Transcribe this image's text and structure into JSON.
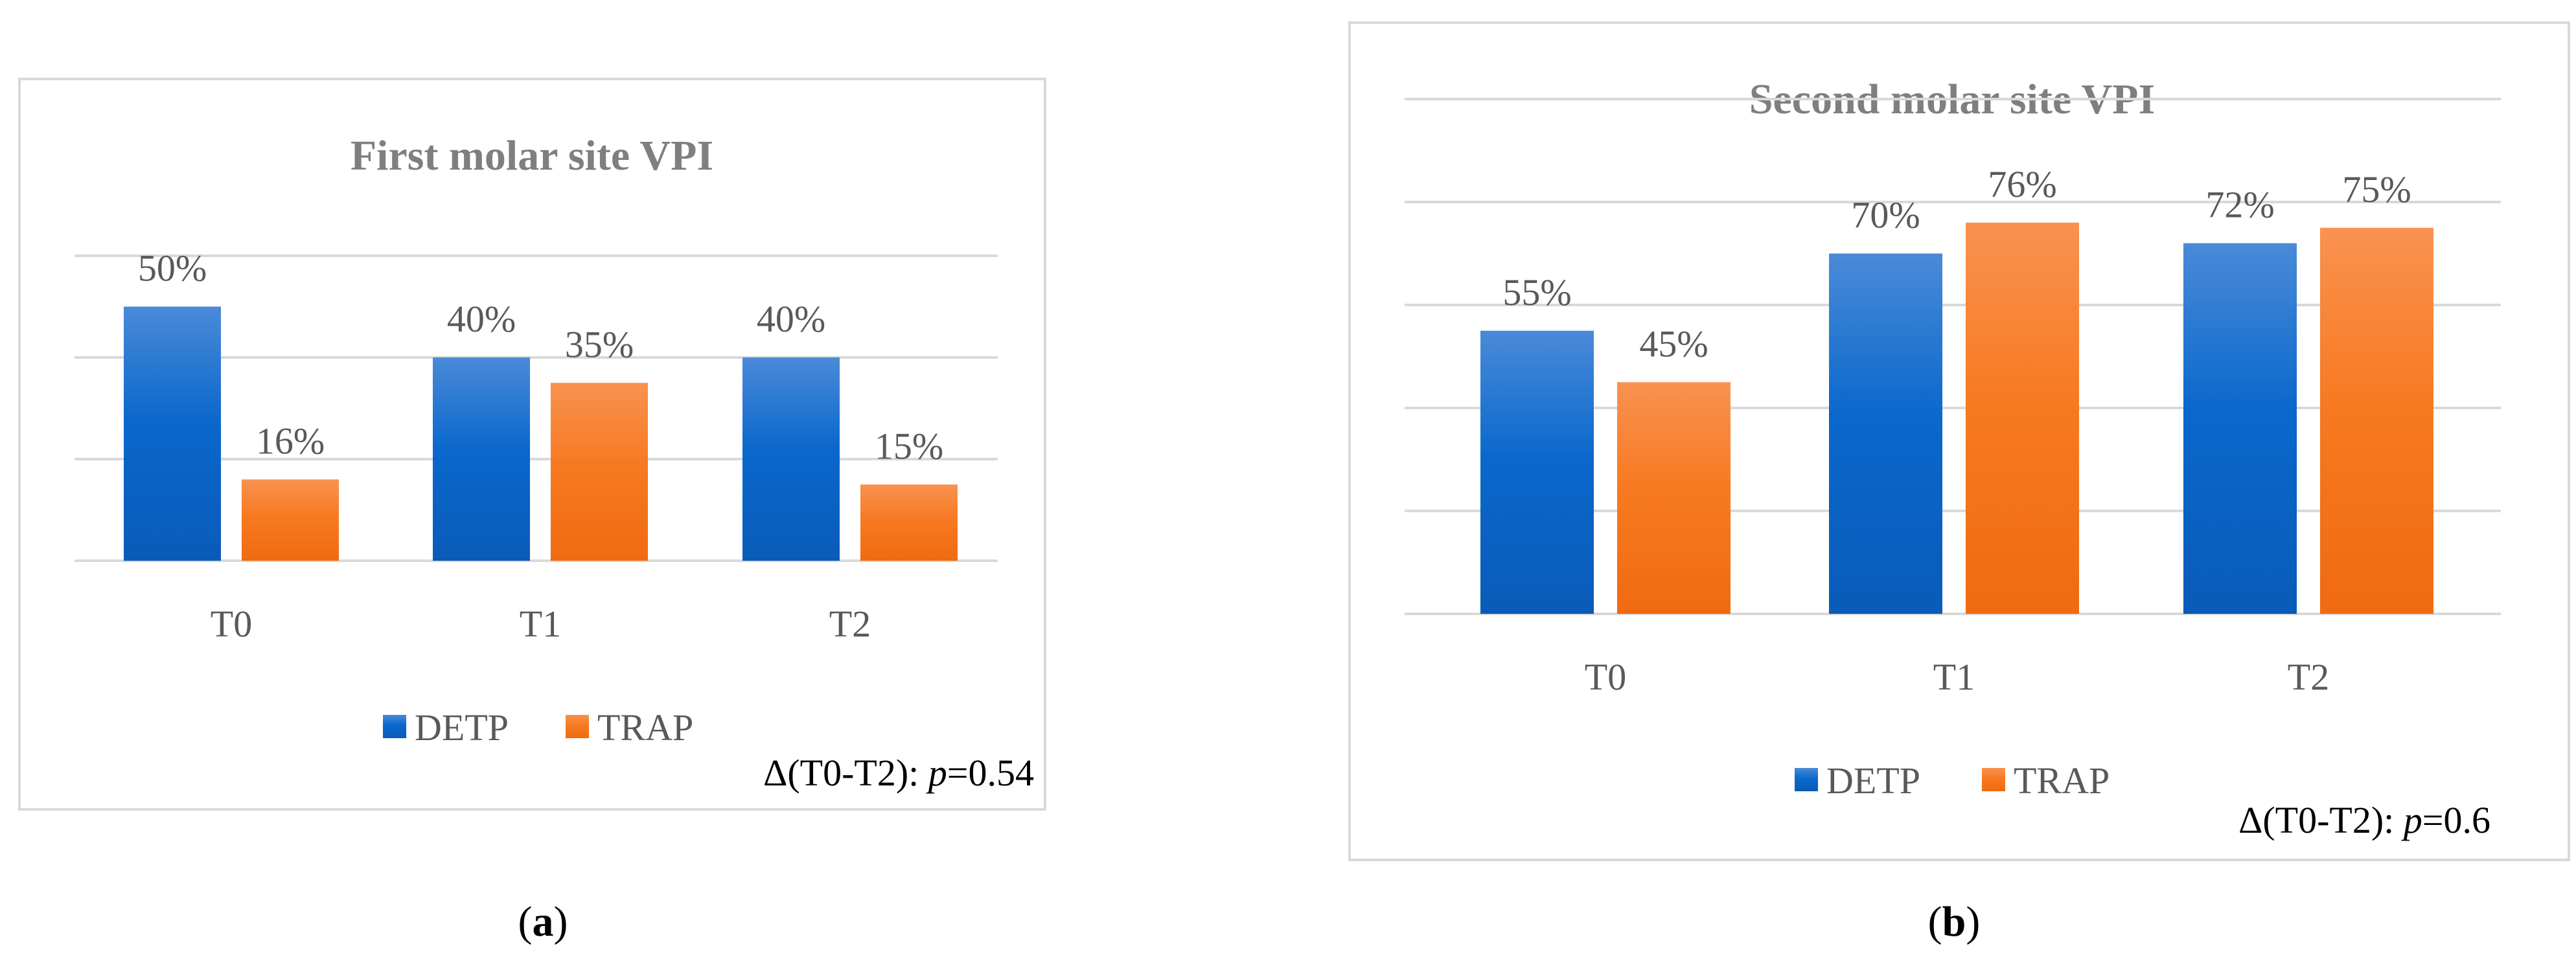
{
  "colors": {
    "DETP": "#1f6fd1",
    "TRAP": "#f57a22",
    "grid": "#d9d9d9",
    "frame": "#d9d9d9"
  },
  "chart_data": [
    {
      "type": "bar",
      "title": "First molar site VPI",
      "categories": [
        "T0",
        "T1",
        "T2"
      ],
      "series": [
        {
          "name": "DETP",
          "values": [
            50,
            40,
            40
          ],
          "labels": [
            "50%",
            "40%",
            "40%"
          ]
        },
        {
          "name": "TRAP",
          "values": [
            16,
            35,
            15
          ],
          "labels": [
            "16%",
            "35%",
            "15%"
          ]
        }
      ],
      "ylim": [
        0,
        60
      ],
      "grid": true,
      "legend": "bottom",
      "note": {
        "prefix": "Δ(T0-T2): ",
        "italic": "p",
        "suffix": "=0.54"
      },
      "caption": {
        "open": "(",
        "letter": "a",
        "close": ")"
      }
    },
    {
      "type": "bar",
      "title": "Second molar site VPI",
      "categories": [
        "T0",
        "T1",
        "T2"
      ],
      "series": [
        {
          "name": "DETP",
          "values": [
            55,
            70,
            72
          ],
          "labels": [
            "55%",
            "70%",
            "72%"
          ]
        },
        {
          "name": "TRAP",
          "values": [
            45,
            76,
            75
          ],
          "labels": [
            "45%",
            "76%",
            "75%"
          ]
        }
      ],
      "ylim": [
        0,
        100
      ],
      "grid": true,
      "legend": "bottom",
      "note": {
        "prefix": "Δ(T0-T2): ",
        "italic": "p",
        "suffix": "=0.6"
      },
      "caption": {
        "open": "(",
        "letter": "b",
        "close": ")"
      }
    }
  ]
}
